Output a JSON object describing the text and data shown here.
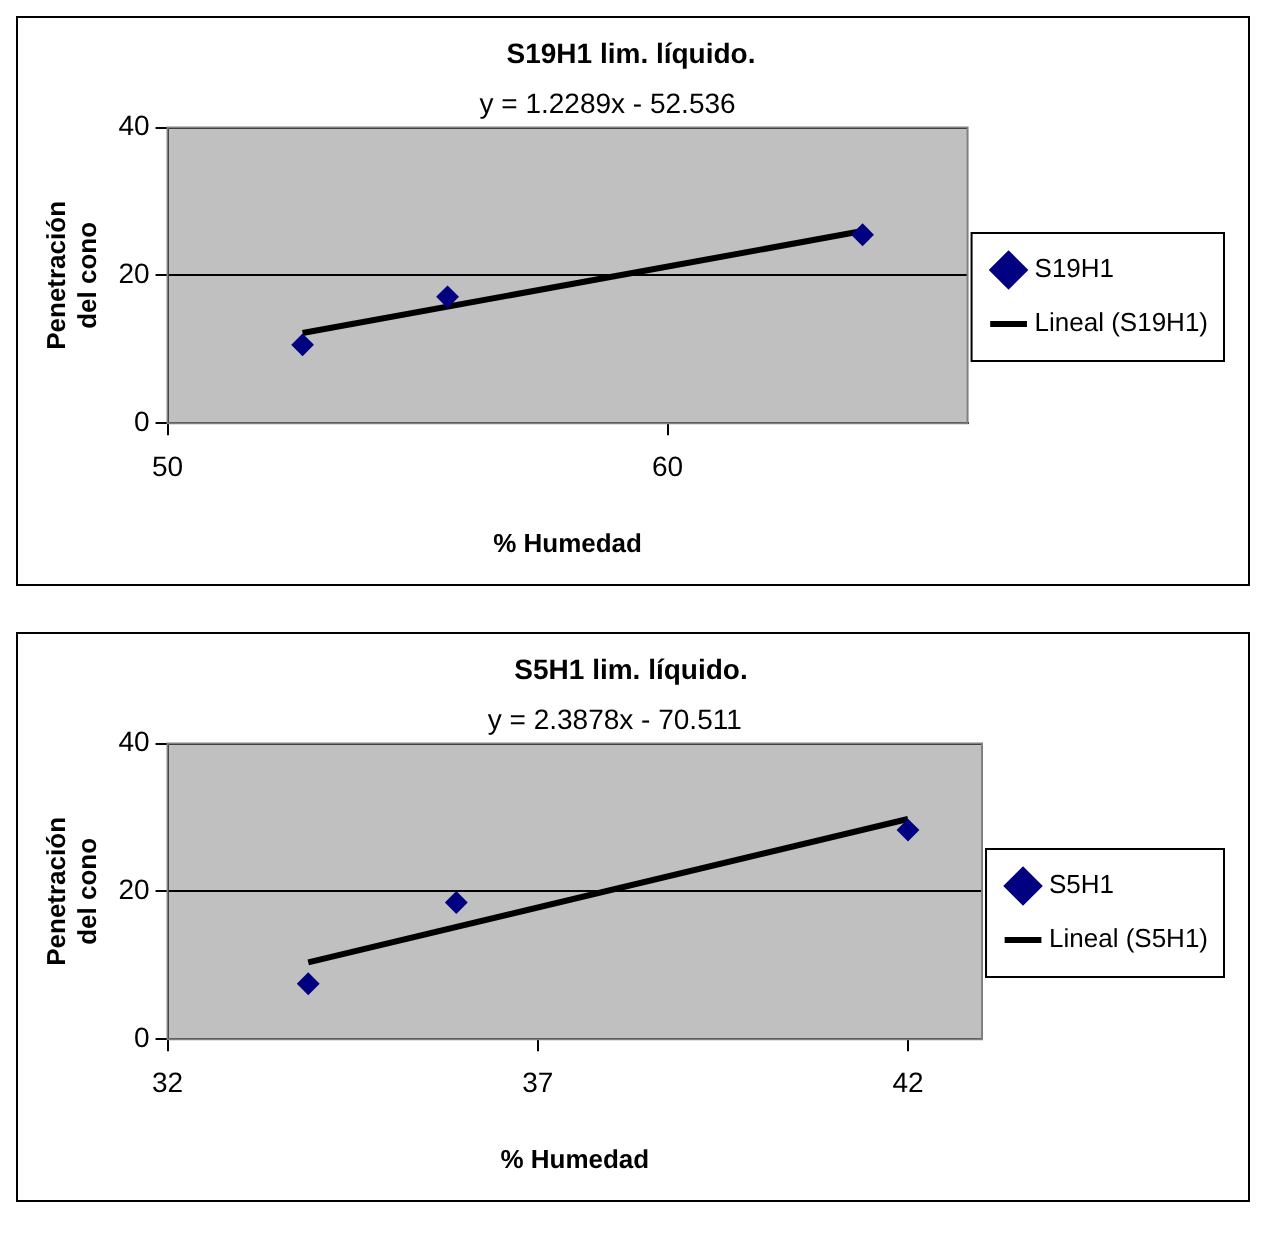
{
  "chart_data": [
    {
      "type": "scatter",
      "title": "S19H1 lim. líquido.",
      "xlabel": "% Humedad",
      "ylabel": "Penetración del cono",
      "annotations": [
        "y = 1.2289x - 52.536"
      ],
      "xlim": [
        50,
        66
      ],
      "xticks": [
        50,
        60
      ],
      "ylim": [
        0,
        40
      ],
      "yticks": [
        0,
        20,
        40
      ],
      "grid": "y",
      "legend": "right",
      "series": [
        {
          "name": "S19H1",
          "type": "scatter",
          "color": "#000080",
          "marker": "diamond",
          "x": [
            52.7,
            55.6,
            63.9
          ],
          "values": [
            10.6,
            17.1,
            25.5
          ]
        },
        {
          "name": "Lineal (S19H1)",
          "type": "line",
          "color": "#000000",
          "marker": "none",
          "line_style": "solid",
          "x": [
            52.7,
            63.9
          ],
          "values": [
            12.2,
            26.0
          ]
        }
      ]
    },
    {
      "type": "scatter",
      "title": "S5H1 lim. líquido.",
      "xlabel": "% Humedad",
      "ylabel": "Penetración del cono",
      "annotations": [
        "y = 2.3878x - 70.511"
      ],
      "xlim": [
        32,
        43
      ],
      "xticks": [
        32,
        37,
        42
      ],
      "ylim": [
        0,
        40
      ],
      "yticks": [
        0,
        20,
        40
      ],
      "grid": "y",
      "legend": "right",
      "series": [
        {
          "name": "S5H1",
          "type": "scatter",
          "color": "#000080",
          "marker": "diamond",
          "x": [
            33.9,
            35.9,
            42.0
          ],
          "values": [
            7.5,
            18.5,
            28.3
          ]
        },
        {
          "name": "Lineal (S5H1)",
          "type": "line",
          "color": "#000000",
          "marker": "none",
          "line_style": "solid",
          "x": [
            33.9,
            42.0
          ],
          "values": [
            10.4,
            29.8
          ]
        }
      ]
    }
  ]
}
